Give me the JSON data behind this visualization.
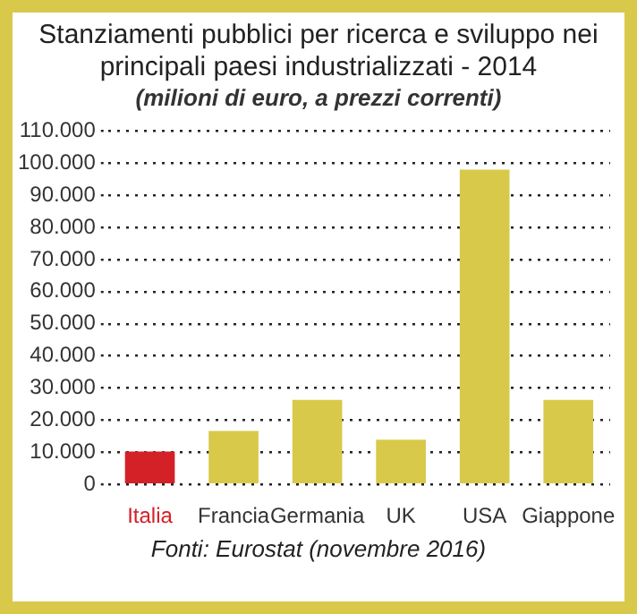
{
  "chart_data": {
    "type": "bar",
    "title": "Stanziamenti pubblici per ricerca e sviluppo nei principali paesi industrializzati - 2014",
    "subtitle": "(milioni di euro, a prezzi correnti)",
    "annotations": [
      "Fonti: Eurostat (novembre 2016)"
    ],
    "categories": [
      "Italia",
      "Francia",
      "Germania",
      "UK",
      "USA",
      "Giappone"
    ],
    "values": [
      10200,
      16600,
      26300,
      13900,
      98000,
      26300
    ],
    "colors": [
      "#d42027",
      "#d9c94a",
      "#d9c94a",
      "#d9c94a",
      "#d9c94a",
      "#d9c94a"
    ],
    "ylim": [
      0,
      110000
    ],
    "yticks": [
      0,
      {
        "value": 10000,
        "label": "10.000"
      },
      {
        "value": 20000,
        "label": "20.000"
      },
      {
        "value": 30000,
        "label": "30.000"
      },
      {
        "value": 40000,
        "label": "40.000"
      },
      {
        "value": 50000,
        "label": "50.000"
      },
      {
        "value": 60000,
        "label": "60.000"
      },
      {
        "value": 70000,
        "label": "70.000"
      },
      {
        "value": 80000,
        "label": "80.000"
      },
      {
        "value": 90000,
        "label": "90.000"
      },
      {
        "value": 100000,
        "label": "100.000"
      },
      {
        "value": 110000,
        "label": "110.000"
      }
    ],
    "grid": "y",
    "legend": false
  }
}
